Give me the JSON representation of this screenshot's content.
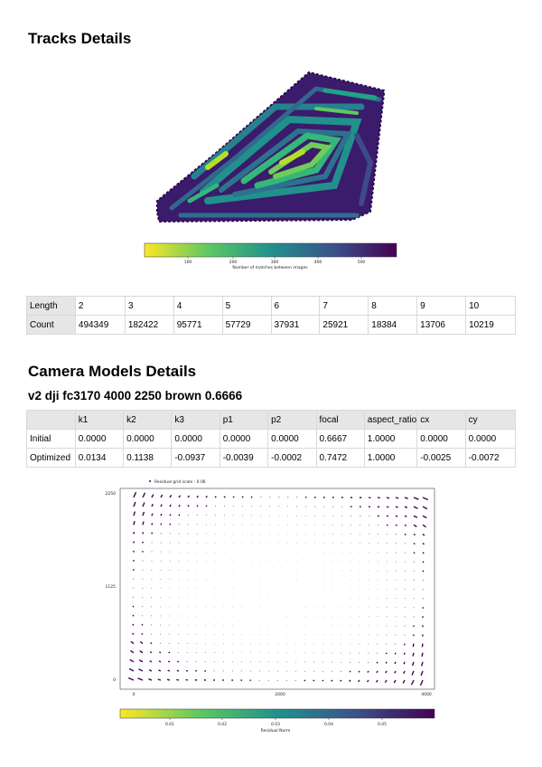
{
  "tracks": {
    "title": "Tracks Details",
    "colorbar": {
      "label": "Number of matches between images",
      "ticks": [
        "100",
        "200",
        "300",
        "400",
        "500"
      ]
    },
    "table": {
      "rows": [
        {
          "header": "Length",
          "cells": [
            "2",
            "3",
            "4",
            "5",
            "6",
            "7",
            "8",
            "9",
            "10"
          ]
        },
        {
          "header": "Count",
          "cells": [
            "494349",
            "182422",
            "95771",
            "57729",
            "37931",
            "25921",
            "18384",
            "13706",
            "10219"
          ]
        }
      ]
    }
  },
  "camera": {
    "title": "Camera Models Details",
    "model": "v2 dji fc3170 4000 2250 brown 0.6666",
    "table": {
      "columns": [
        "",
        "k1",
        "k2",
        "k3",
        "p1",
        "p2",
        "focal",
        "aspect_ratio",
        "cx",
        "cy"
      ],
      "rows": [
        {
          "header": "Initial",
          "cells": [
            "0.0000",
            "0.0000",
            "0.0000",
            "0.0000",
            "0.0000",
            "0.6667",
            "1.0000",
            "0.0000",
            "0.0000"
          ]
        },
        {
          "header": "Optimized",
          "cells": [
            "0.0134",
            "0.1138",
            "-0.0937",
            "-0.0039",
            "-0.0002",
            "0.7472",
            "1.0000",
            "-0.0025",
            "-0.0072"
          ]
        }
      ]
    },
    "residual_plot": {
      "legend": "Residual grid scale : 0.06",
      "y_ticks": [
        "2250",
        "1125",
        "0"
      ],
      "x_ticks": [
        "0",
        "2000",
        "4000"
      ],
      "colorbar": {
        "label": "Residual Norm",
        "ticks": [
          "0.01",
          "0.02",
          "0.03",
          "0.04",
          "0.05"
        ]
      }
    }
  },
  "colors": {
    "viridis_low": "#fde725",
    "viridis_mid": "#21918c",
    "viridis_high": "#440154"
  }
}
